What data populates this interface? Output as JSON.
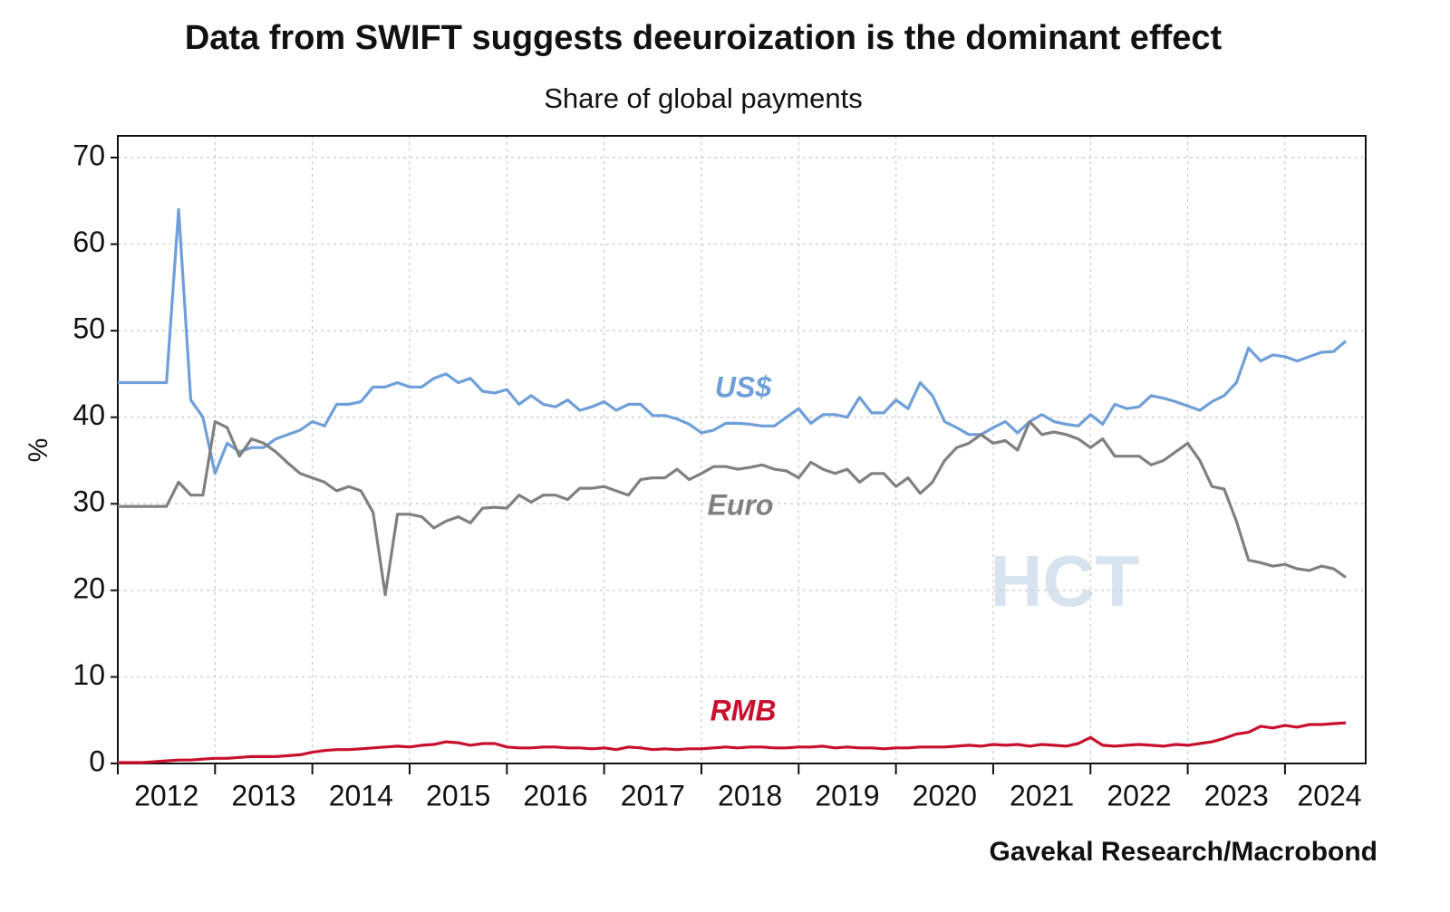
{
  "chart_data": {
    "type": "line",
    "title": "Data from SWIFT suggests deeuroization is the dominant effect",
    "subtitle": "Share of global payments",
    "y_label": "%",
    "source": "Gavekal Research/Macrobond",
    "watermark": "HCT",
    "x": [
      2012.0,
      2012.125,
      2012.25,
      2012.375,
      2012.5,
      2012.625,
      2012.75,
      2012.875,
      2013.0,
      2013.125,
      2013.25,
      2013.375,
      2013.5,
      2013.625,
      2013.75,
      2013.875,
      2014.0,
      2014.125,
      2014.25,
      2014.375,
      2014.5,
      2014.625,
      2014.75,
      2014.875,
      2015.0,
      2015.125,
      2015.25,
      2015.375,
      2015.5,
      2015.625,
      2015.75,
      2015.875,
      2016.0,
      2016.125,
      2016.25,
      2016.375,
      2016.5,
      2016.625,
      2016.75,
      2016.875,
      2017.0,
      2017.125,
      2017.25,
      2017.375,
      2017.5,
      2017.625,
      2017.75,
      2017.875,
      2018.0,
      2018.125,
      2018.25,
      2018.375,
      2018.5,
      2018.625,
      2018.75,
      2018.875,
      2019.0,
      2019.125,
      2019.25,
      2019.375,
      2019.5,
      2019.625,
      2019.75,
      2019.875,
      2020.0,
      2020.125,
      2020.25,
      2020.375,
      2020.5,
      2020.625,
      2020.75,
      2020.875,
      2021.0,
      2021.125,
      2021.25,
      2021.375,
      2021.5,
      2021.625,
      2021.75,
      2021.875,
      2022.0,
      2022.125,
      2022.25,
      2022.375,
      2022.5,
      2022.625,
      2022.75,
      2022.875,
      2023.0,
      2023.125,
      2023.25,
      2023.375,
      2023.5,
      2023.625,
      2023.75,
      2023.875,
      2024.0,
      2024.125,
      2024.25,
      2024.375,
      2024.5,
      2024.625
    ],
    "series": [
      {
        "name": "US$",
        "color": "#6f9fd8",
        "values": [
          44,
          44,
          44,
          44,
          44,
          64,
          42,
          40,
          33.5,
          37,
          36,
          36.5,
          36.5,
          37.5,
          38,
          38.5,
          39.5,
          39,
          41.5,
          41.5,
          41.8,
          43.5,
          43.5,
          44,
          43.5,
          43.5,
          44.5,
          45,
          44,
          44.5,
          43,
          42.8,
          43.2,
          41.5,
          42.5,
          41.5,
          41.2,
          42,
          40.8,
          41.2,
          41.8,
          40.8,
          41.5,
          41.5,
          40.2,
          40.2,
          39.8,
          39.2,
          38.2,
          38.5,
          39.3,
          39.3,
          39.2,
          39,
          39,
          40,
          41,
          39.3,
          40.3,
          40.3,
          40,
          42.3,
          40.5,
          40.5,
          42,
          41,
          44,
          42.5,
          39.5,
          38.8,
          38,
          38,
          38.8,
          39.5,
          38.2,
          39.5,
          40.3,
          39.5,
          39.2,
          39,
          40.3,
          39.2,
          41.5,
          41,
          41.2,
          42.5,
          42.2,
          41.8,
          41.3,
          40.8,
          41.8,
          42.5,
          44,
          48,
          46.5,
          47.2,
          47,
          46.5,
          47,
          47.5,
          47.6,
          48.8
        ]
      },
      {
        "name": "Euro",
        "color": "#808080",
        "values": [
          29.7,
          29.7,
          29.7,
          29.7,
          29.7,
          32.5,
          31,
          31,
          39.5,
          38.8,
          35.5,
          37.5,
          37,
          36,
          34.7,
          33.5,
          33,
          32.5,
          31.5,
          32,
          31.5,
          29,
          19.5,
          28.8,
          28.8,
          28.5,
          27.2,
          28,
          28.5,
          27.8,
          29.5,
          29.6,
          29.5,
          31,
          30.2,
          31,
          31,
          30.5,
          31.8,
          31.8,
          32,
          31.5,
          31,
          32.8,
          33,
          33,
          34,
          32.8,
          33.5,
          34.3,
          34.3,
          34,
          34.2,
          34.5,
          34,
          33.8,
          33,
          34.8,
          34,
          33.5,
          34,
          32.5,
          33.5,
          33.5,
          32,
          33,
          31.2,
          32.5,
          35,
          36.5,
          37,
          38,
          37,
          37.3,
          36.2,
          39.5,
          38,
          38.3,
          38,
          37.5,
          36.5,
          37.5,
          35.5,
          35.5,
          35.5,
          34.5,
          35,
          36,
          37,
          35,
          32,
          31.7,
          28,
          23.5,
          23.2,
          22.8,
          23,
          22.5,
          22.3,
          22.8,
          22.5,
          21.5
        ]
      },
      {
        "name": "RMB",
        "color": "#c8102e",
        "values": [
          0.1,
          0.1,
          0.1,
          0.2,
          0.3,
          0.4,
          0.4,
          0.5,
          0.6,
          0.6,
          0.7,
          0.8,
          0.8,
          0.8,
          0.9,
          1.0,
          1.3,
          1.5,
          1.6,
          1.6,
          1.7,
          1.8,
          1.9,
          2.0,
          1.9,
          2.1,
          2.2,
          2.5,
          2.4,
          2.1,
          2.3,
          2.3,
          1.9,
          1.8,
          1.8,
          1.9,
          1.9,
          1.8,
          1.8,
          1.7,
          1.8,
          1.6,
          1.9,
          1.8,
          1.6,
          1.7,
          1.6,
          1.7,
          1.7,
          1.8,
          1.9,
          1.8,
          1.9,
          1.9,
          1.8,
          1.8,
          1.9,
          1.9,
          2.0,
          1.8,
          1.9,
          1.8,
          1.8,
          1.7,
          1.8,
          1.8,
          1.9,
          1.9,
          1.9,
          2.0,
          2.1,
          2.0,
          2.2,
          2.1,
          2.2,
          2.0,
          2.2,
          2.1,
          2.0,
          2.3,
          3.0,
          2.1,
          2.0,
          2.1,
          2.2,
          2.1,
          2.0,
          2.2,
          2.1,
          2.3,
          2.5,
          2.9,
          3.4,
          3.6,
          4.3,
          4.1,
          4.4,
          4.2,
          4.5,
          4.5,
          4.6,
          4.7
        ]
      }
    ],
    "xlim": [
      2012,
      2024.83
    ],
    "xticks": [
      2012,
      2013,
      2014,
      2015,
      2016,
      2017,
      2018,
      2019,
      2020,
      2021,
      2022,
      2023,
      2024
    ],
    "ylim": [
      0,
      70
    ],
    "yticks": [
      0,
      10,
      20,
      30,
      40,
      50,
      60,
      70
    ],
    "grid": true
  }
}
